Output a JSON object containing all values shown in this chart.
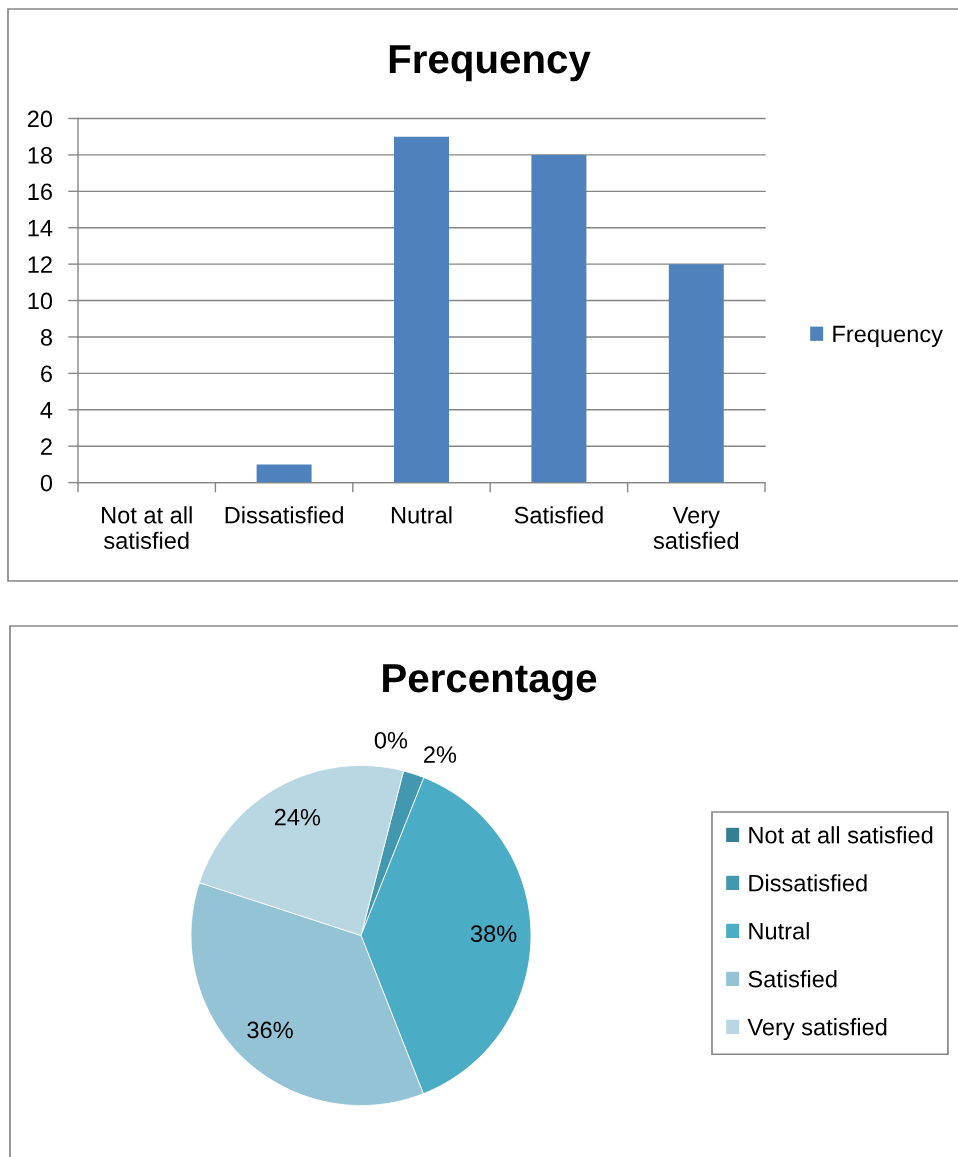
{
  "chart_data": [
    {
      "type": "bar",
      "title": "Frequency",
      "categories": [
        "Not at all satisfied",
        "Dissatisfied",
        "Nutral",
        "Satisfied",
        "Very satisfied"
      ],
      "series": [
        {
          "name": "Frequency",
          "color": "#4f81bd",
          "values": [
            0,
            1,
            19,
            18,
            12
          ]
        }
      ],
      "ylim": [
        0,
        20
      ],
      "yticks": [
        0,
        2,
        4,
        6,
        8,
        10,
        12,
        14,
        16,
        18,
        20
      ],
      "grid": "y",
      "legend": "right"
    },
    {
      "type": "pie",
      "title": "Percentage",
      "categories": [
        "Not at all satisfied",
        "Dissatisfied",
        "Nutral",
        "Satisfied",
        "Very satisfied"
      ],
      "values": [
        0,
        2,
        38,
        36,
        24
      ],
      "colors": [
        "#367f93",
        "#4398b0",
        "#4bacc6",
        "#93c3d4",
        "#b9d7e3"
      ],
      "value_labels": [
        "0%",
        "2%",
        "38%",
        "36%",
        "24%"
      ],
      "legend": "right"
    }
  ]
}
